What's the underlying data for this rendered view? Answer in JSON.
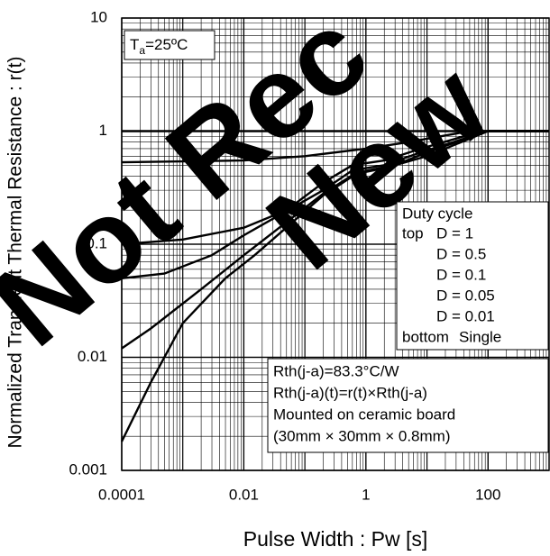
{
  "chart_data": {
    "type": "line",
    "y_label": "Normalized Transient Thermal Resistance : r(t)",
    "x_label": "Pulse Width : Pw [s]",
    "log_x": true,
    "log_y": true,
    "grid": true,
    "minor_grid": true,
    "xlim": [
      0.0001,
      1000
    ],
    "ylim": [
      0.001,
      10
    ],
    "xticks": [
      0.0001,
      0.01,
      1,
      100
    ],
    "yticks": [
      0.001,
      0.01,
      0.1,
      1,
      10
    ],
    "ambient_label": {
      "main": "T",
      "sub": "a",
      "rest": "=25ºC"
    },
    "legend_title": "Duty cycle",
    "legend_top": "top",
    "legend_bottom": "bottom",
    "notes": [
      "Rth(j-a)=83.3°C/W",
      "Rth(j-a)(t)=r(t)×Rth(j-a)",
      "Mounted on ceramic board",
      "(30mm × 30mm × 0.8mm)"
    ],
    "watermark": [
      "Not Rec",
      "New"
    ],
    "series": [
      {
        "name": "D = 1",
        "color": "#000000",
        "x": [
          0.0001,
          1000
        ],
        "values": [
          1,
          1
        ]
      },
      {
        "name": "D = 0.5",
        "color": "#000000",
        "x": [
          0.0001,
          0.01,
          0.1,
          1,
          5,
          50,
          1000
        ],
        "values": [
          0.53,
          0.55,
          0.6,
          0.7,
          0.8,
          1,
          1
        ]
      },
      {
        "name": "D = 0.1",
        "color": "#000000",
        "x": [
          0.0001,
          0.001,
          0.01,
          0.05,
          0.2,
          0.6,
          2,
          8,
          80,
          1000
        ],
        "values": [
          0.1,
          0.11,
          0.14,
          0.2,
          0.35,
          0.5,
          0.55,
          0.7,
          1,
          1
        ]
      },
      {
        "name": "D = 0.05",
        "color": "#000000",
        "x": [
          0.0001,
          0.0005,
          0.003,
          0.01,
          0.2,
          0.6,
          2,
          8,
          100,
          1000
        ],
        "values": [
          0.05,
          0.055,
          0.08,
          0.12,
          0.3,
          0.45,
          0.5,
          0.65,
          1,
          1
        ]
      },
      {
        "name": "D = 0.01",
        "color": "#000000",
        "x": [
          0.0001,
          0.0003,
          0.002,
          0.01,
          0.2,
          0.7,
          3,
          10,
          100,
          1000
        ],
        "values": [
          0.012,
          0.018,
          0.04,
          0.08,
          0.28,
          0.43,
          0.5,
          0.65,
          1,
          1
        ]
      },
      {
        "name": "Single",
        "color": "#000000",
        "x": [
          0.0001,
          0.0003,
          0.001,
          0.005,
          0.015,
          0.2,
          0.7,
          2,
          10,
          100,
          1000
        ],
        "values": [
          0.0018,
          0.006,
          0.02,
          0.05,
          0.08,
          0.27,
          0.42,
          0.47,
          0.6,
          1,
          1
        ]
      }
    ]
  }
}
